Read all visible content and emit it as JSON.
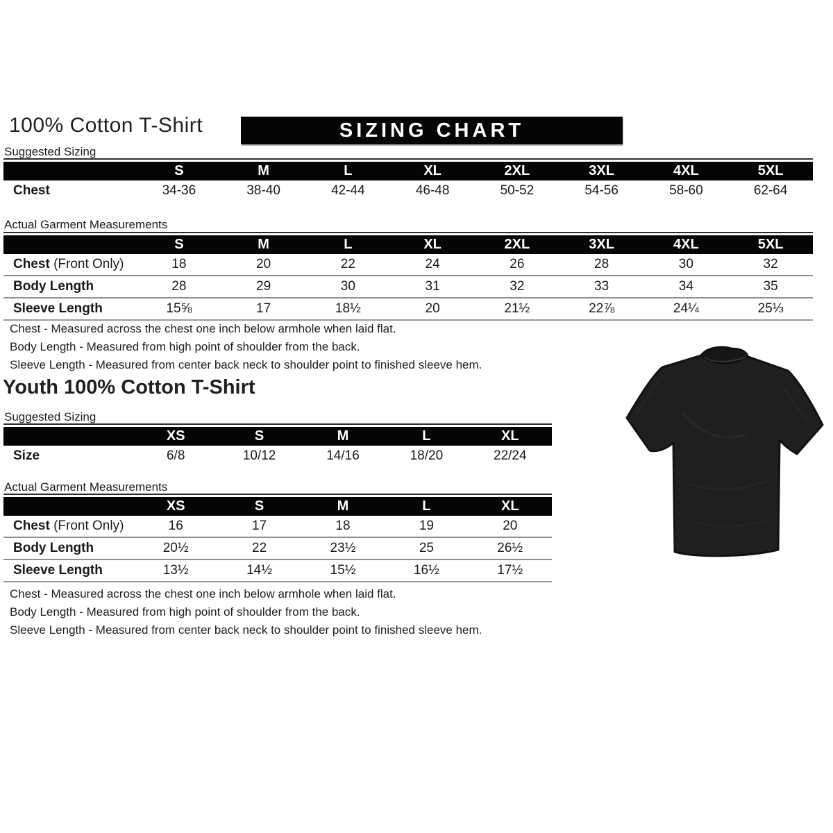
{
  "header": {
    "title": "100% Cotton T-Shirt",
    "banner": "SIZING CHART"
  },
  "adult": {
    "suggested_label": "Suggested Sizing",
    "actual_label": "Actual Garment Measurements",
    "suggested": {
      "label_width": 192,
      "columns": [
        "S",
        "M",
        "L",
        "XL",
        "2XL",
        "3XL",
        "4XL",
        "5XL"
      ],
      "rows": [
        {
          "label": "Chest",
          "suffix": "",
          "values": [
            "34-36",
            "38-40",
            "42-44",
            "46-48",
            "50-52",
            "54-56",
            "58-60",
            "62-64"
          ]
        }
      ]
    },
    "actual": {
      "label_width": 192,
      "columns": [
        "S",
        "M",
        "L",
        "XL",
        "2XL",
        "3XL",
        "4XL",
        "5XL"
      ],
      "rows": [
        {
          "label": "Chest",
          "suffix": " (Front Only)",
          "values": [
            "18",
            "20",
            "22",
            "24",
            "26",
            "28",
            "30",
            "32"
          ]
        },
        {
          "label": "Body Length",
          "suffix": "",
          "values": [
            "28",
            "29",
            "30",
            "31",
            "32",
            "33",
            "34",
            "35"
          ]
        },
        {
          "label": "Sleeve Length",
          "suffix": "",
          "values": [
            "15⅝",
            "17",
            "18½",
            "20",
            "21½",
            "22⅞",
            "24¼",
            "25⅓"
          ]
        }
      ]
    },
    "notes": [
      "Chest - Measured across the chest one inch below armhole when laid flat.",
      "Body Length - Measured from high point of shoulder from the back.",
      "Sleeve Length - Measured from center back neck to shoulder point to finished sleeve hem."
    ]
  },
  "youth": {
    "title": "Youth 100% Cotton T-Shirt",
    "suggested_label": "Suggested Sizing",
    "actual_label": "Actual Garment Measurements",
    "suggested": {
      "label_width": 188,
      "columns": [
        "XS",
        "S",
        "M",
        "L",
        "XL"
      ],
      "rows": [
        {
          "label": "Size",
          "suffix": "",
          "values": [
            "6/8",
            "10/12",
            "14/16",
            "18/20",
            "22/24"
          ]
        }
      ]
    },
    "actual": {
      "label_width": 188,
      "columns": [
        "XS",
        "S",
        "M",
        "L",
        "XL"
      ],
      "rows": [
        {
          "label": "Chest",
          "suffix": " (Front Only)",
          "values": [
            "16",
            "17",
            "18",
            "19",
            "20"
          ]
        },
        {
          "label": "Body Length",
          "suffix": "",
          "values": [
            "20½",
            "22",
            "23½",
            "25",
            "26½"
          ]
        },
        {
          "label": "Sleeve Length",
          "suffix": "",
          "values": [
            "13½",
            "14½",
            "15½",
            "16½",
            "17½"
          ]
        }
      ]
    },
    "notes": [
      "Chest - Measured across the chest one inch below armhole when laid flat.",
      "Body Length - Measured from high point of shoulder from the back.",
      "Sleeve Length - Measured from center back neck to shoulder point to finished sleeve hem."
    ]
  },
  "image": {
    "tshirt_alt": "black short-sleeve crew-neck t-shirt",
    "shirt_color": "#1f1f1f",
    "shirt_shadow": "#121212",
    "shirt_highlight": "#2e2e2e"
  }
}
